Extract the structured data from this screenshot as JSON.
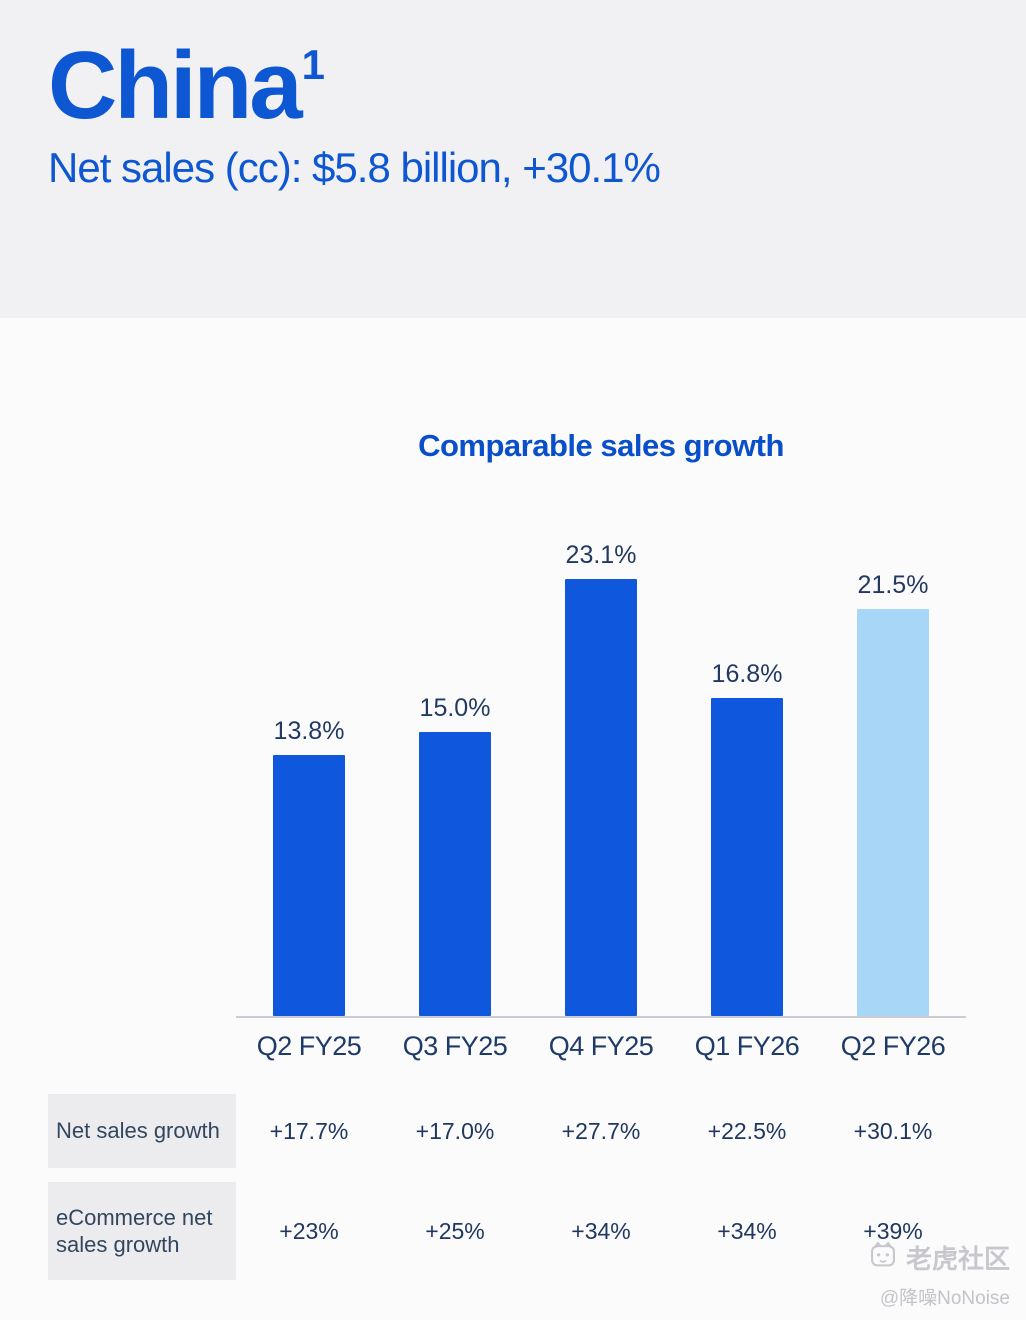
{
  "header": {
    "title": "China",
    "footnote_marker": "1",
    "subtitle": "Net sales (cc): $5.8 billion, +30.1%"
  },
  "chart_data": {
    "type": "bar",
    "title": "Comparable sales growth",
    "categories": [
      "Q2 FY25",
      "Q3 FY25",
      "Q4 FY25",
      "Q1 FY26",
      "Q2 FY26"
    ],
    "values": [
      13.8,
      15.0,
      23.1,
      16.8,
      21.5
    ],
    "value_labels": [
      "13.8%",
      "15.0%",
      "23.1%",
      "16.8%",
      "21.5%"
    ],
    "bar_colors": [
      "#0f57dc",
      "#0f57dc",
      "#0f57dc",
      "#0f57dc",
      "#a8d6f6"
    ],
    "ylim": [
      0,
      26
    ],
    "grid": false,
    "legend": false,
    "xlabel": "",
    "ylabel": ""
  },
  "table": {
    "rows": [
      {
        "label": "Net sales growth",
        "values": [
          "+17.7%",
          "+17.0%",
          "+27.7%",
          "+22.5%",
          "+30.1%"
        ]
      },
      {
        "label": "eCommerce net sales growth",
        "values": [
          "+23%",
          "+25%",
          "+34%",
          "+34%",
          "+39%"
        ]
      }
    ]
  },
  "watermark": {
    "brand": "老虎社区",
    "handle": "@降噪NoNoise"
  },
  "colors": {
    "accent_blue": "#0d57d2",
    "bar_blue": "#0f57dc",
    "bar_light_blue": "#a8d6f6",
    "navy_text": "#20375f",
    "hero_background": "#f1f1f4"
  }
}
